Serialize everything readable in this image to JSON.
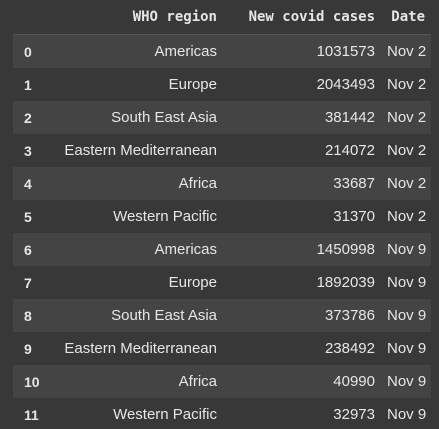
{
  "table": {
    "columns": [
      "",
      "WHO region",
      "New covid cases",
      "Date"
    ],
    "rows": [
      {
        "index": "0",
        "region": "Americas",
        "cases": "1031573",
        "date": "Nov 2"
      },
      {
        "index": "1",
        "region": "Europe",
        "cases": "2043493",
        "date": "Nov 2"
      },
      {
        "index": "2",
        "region": "South East Asia",
        "cases": "381442",
        "date": "Nov 2"
      },
      {
        "index": "3",
        "region": "Eastern Mediterranean",
        "cases": "214072",
        "date": "Nov 2"
      },
      {
        "index": "4",
        "region": "Africa",
        "cases": "33687",
        "date": "Nov 2"
      },
      {
        "index": "5",
        "region": "Western Pacific",
        "cases": "31370",
        "date": "Nov 2"
      },
      {
        "index": "6",
        "region": "Americas",
        "cases": "1450998",
        "date": "Nov 9"
      },
      {
        "index": "7",
        "region": "Europe",
        "cases": "1892039",
        "date": "Nov 9"
      },
      {
        "index": "8",
        "region": "South East Asia",
        "cases": "373786",
        "date": "Nov 9"
      },
      {
        "index": "9",
        "region": "Eastern Mediterranean",
        "cases": "238492",
        "date": "Nov 9"
      },
      {
        "index": "10",
        "region": "Africa",
        "cases": "40990",
        "date": "Nov 9"
      },
      {
        "index": "11",
        "region": "Western Pacific",
        "cases": "32973",
        "date": "Nov 9"
      }
    ]
  },
  "colors": {
    "background": "#383838",
    "stripe": "#444444",
    "text": "#e6e6e6"
  }
}
